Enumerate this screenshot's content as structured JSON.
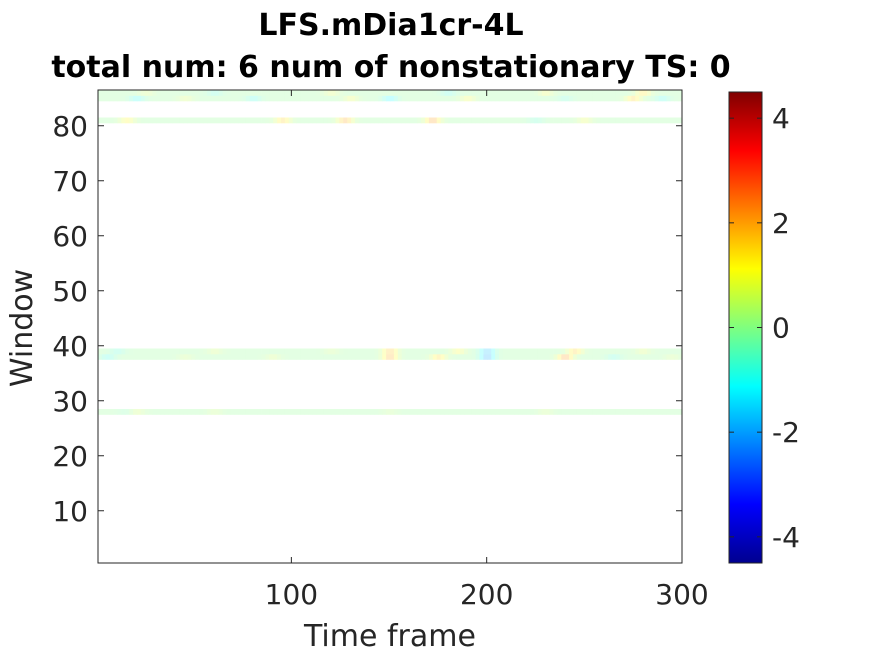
{
  "chart_data": {
    "type": "heatmap",
    "title": "LFS.mDia1cr-4L",
    "subtitle": "total num: 6 num of nonstationary TS: 0",
    "xlabel": "Time frame",
    "ylabel": "Window",
    "xlim": [
      1,
      300
    ],
    "ylim": [
      0.5,
      86.5
    ],
    "x_ticks": [
      100,
      200,
      300
    ],
    "y_ticks": [
      10,
      20,
      30,
      40,
      50,
      60,
      70,
      80
    ],
    "colorbar": {
      "colormap": "jet",
      "range": [
        -4.5,
        4.5
      ],
      "ticks": [
        -4,
        -2,
        0,
        2,
        4
      ]
    },
    "rows_with_data": [
      {
        "window": 28,
        "values_note": ""
      },
      {
        "window": 38
      },
      {
        "window": 39
      },
      {
        "window": 81
      },
      {
        "window": 85
      },
      {
        "window": 86
      }
    ],
    "series": [
      {
        "window": 28,
        "hotspots": [
          [
            15,
            -0.3
          ],
          [
            20,
            0.6
          ],
          [
            60,
            0.4
          ],
          [
            150,
            0.3
          ],
          [
            230,
            0.4
          ]
        ]
      },
      {
        "window": 38,
        "hotspots": [
          [
            5,
            -0.8
          ],
          [
            45,
            0.4
          ],
          [
            90,
            0.5
          ],
          [
            150,
            2.0
          ],
          [
            175,
            1.5
          ],
          [
            200,
            -2.0
          ],
          [
            240,
            2.2
          ],
          [
            265,
            -0.6
          ],
          [
            295,
            0.4
          ]
        ]
      },
      {
        "window": 39,
        "hotspots": [
          [
            10,
            -0.6
          ],
          [
            60,
            0.5
          ],
          [
            120,
            0.4
          ],
          [
            150,
            1.8
          ],
          [
            185,
            1.0
          ],
          [
            200,
            -1.8
          ],
          [
            245,
            1.6
          ],
          [
            280,
            0.6
          ]
        ]
      },
      {
        "window": 81,
        "hotspots": [
          [
            15,
            1.2
          ],
          [
            95,
            1.6
          ],
          [
            127,
            2.0
          ],
          [
            172,
            2.2
          ],
          [
            225,
            -0.5
          ],
          [
            250,
            0.8
          ]
        ]
      },
      {
        "window": 85,
        "hotspots": [
          [
            20,
            -1.0
          ],
          [
            45,
            0.6
          ],
          [
            80,
            -0.8
          ],
          [
            130,
            0.8
          ],
          [
            150,
            -1.2
          ],
          [
            190,
            0.9
          ],
          [
            240,
            -0.5
          ],
          [
            275,
            1.6
          ],
          [
            290,
            -0.8
          ]
        ]
      },
      {
        "window": 86,
        "hotspots": [
          [
            25,
            0.5
          ],
          [
            60,
            -0.6
          ],
          [
            120,
            0.7
          ],
          [
            180,
            -0.7
          ],
          [
            230,
            0.8
          ],
          [
            280,
            1.4
          ]
        ]
      }
    ]
  }
}
